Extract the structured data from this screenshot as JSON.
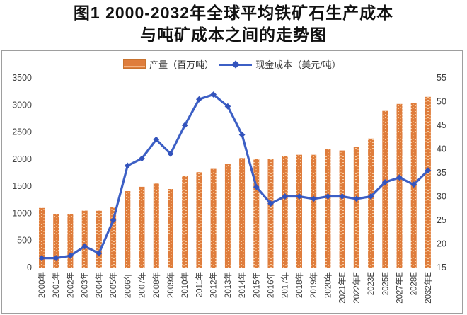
{
  "title": {
    "line1": "图1  2000-2032年全球平均铁矿石生产成本",
    "line2": "与吨矿成本之间的走势图"
  },
  "legend": {
    "bar_label": "产量（百万吨）",
    "line_label": "现金成本（美元/吨）"
  },
  "colors": {
    "bar": "#df7d3c",
    "bar_light": "#f7cda4",
    "bar_mid": "#f0ac74",
    "line": "#3c5fc5",
    "marker": "#3353bc",
    "axis_text": "#3f3f3f",
    "axis_line": "#c0c0c0",
    "border": "#9e9e9e"
  },
  "chart_data": {
    "type": "bar+line combo",
    "title": "图1 2000-2032年全球平均铁矿石生产成本与吨矿成本之间的走势图",
    "categories": [
      "2000年",
      "2001年",
      "2002年",
      "2003年",
      "2004年",
      "2005年",
      "2006年",
      "2007年",
      "2008年",
      "2009年",
      "2010年",
      "2011年",
      "2012年",
      "2013年",
      "2014年",
      "2015年",
      "2016年",
      "2017年",
      "2018年",
      "2019年",
      "2020年",
      "2021年E",
      "2022年E",
      "2023E",
      "2025E",
      "2027年E",
      "2028E",
      "2032年E"
    ],
    "series": [
      {
        "name": "产量（百万吨）",
        "type": "bar",
        "axis": "left",
        "values": [
          1100,
          990,
          980,
          1050,
          1050,
          1120,
          1410,
          1490,
          1550,
          1450,
          1690,
          1760,
          1820,
          1910,
          2020,
          2010,
          2010,
          2060,
          2080,
          2080,
          2190,
          2160,
          2220,
          2380,
          2890,
          3020,
          3030,
          3150
        ]
      },
      {
        "name": "现金成本（美元/吨）",
        "type": "line",
        "axis": "right",
        "values": [
          17,
          17,
          17.5,
          19.5,
          18,
          25,
          36.5,
          38,
          42,
          39,
          45,
          50.5,
          51.5,
          49,
          43,
          32,
          28.5,
          30,
          30,
          29.5,
          30,
          30,
          29.5,
          30,
          33,
          34,
          32.5,
          35.5
        ]
      }
    ],
    "left_axis": {
      "min": 0,
      "max": 3500,
      "step": 500,
      "ticks": [
        "0",
        "500",
        "1000",
        "1500",
        "2000",
        "2500",
        "3000",
        "3500"
      ]
    },
    "right_axis": {
      "min": 15,
      "max": 55,
      "step": 5,
      "ticks": [
        "15",
        "20",
        "25",
        "30",
        "35",
        "40",
        "45",
        "50",
        "55"
      ]
    },
    "grid": false,
    "legend_position": "top"
  }
}
